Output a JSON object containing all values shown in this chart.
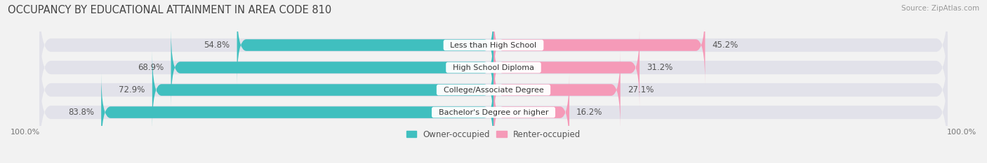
{
  "title": "OCCUPANCY BY EDUCATIONAL ATTAINMENT IN AREA CODE 810",
  "source": "Source: ZipAtlas.com",
  "categories": [
    "Less than High School",
    "High School Diploma",
    "College/Associate Degree",
    "Bachelor's Degree or higher"
  ],
  "owner_pct": [
    54.8,
    68.9,
    72.9,
    83.8
  ],
  "renter_pct": [
    45.2,
    31.2,
    27.1,
    16.2
  ],
  "owner_color": "#40bfbf",
  "renter_color": "#f59ab8",
  "bg_color": "#f2f2f2",
  "bar_bg_color": "#e2e2ea",
  "title_fontsize": 10.5,
  "label_fontsize": 8.5,
  "tick_fontsize": 8,
  "source_fontsize": 7.5
}
